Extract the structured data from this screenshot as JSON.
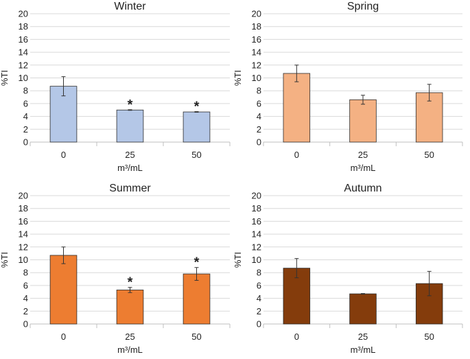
{
  "chart_data": [
    {
      "type": "bar",
      "title": "Winter",
      "categories": [
        "0",
        "25",
        "50"
      ],
      "values": [
        8.7,
        5.0,
        4.7
      ],
      "errors": [
        1.5,
        0.05,
        0.05
      ],
      "significant": [
        false,
        true,
        true
      ],
      "marker": "*",
      "xlabel": "m³/mL",
      "ylabel": "%TI",
      "ylim": [
        0,
        20
      ],
      "yticks": [
        0,
        2,
        4,
        6,
        8,
        10,
        12,
        14,
        16,
        18,
        20
      ],
      "grid": true,
      "color": "#b4c7e7"
    },
    {
      "type": "bar",
      "title": "Spring",
      "categories": [
        "0",
        "25",
        "50"
      ],
      "values": [
        10.7,
        6.6,
        7.7
      ],
      "errors": [
        1.3,
        0.7,
        1.3
      ],
      "significant": [
        false,
        false,
        false
      ],
      "marker": "*",
      "xlabel": "m³/mL",
      "ylabel": "%TI",
      "ylim": [
        0,
        20
      ],
      "yticks": [
        0,
        2,
        4,
        6,
        8,
        10,
        12,
        14,
        16,
        18,
        20
      ],
      "grid": true,
      "color": "#f4b183"
    },
    {
      "type": "bar",
      "title": "Summer",
      "categories": [
        "0",
        "25",
        "50"
      ],
      "values": [
        10.7,
        5.3,
        7.8
      ],
      "errors": [
        1.3,
        0.4,
        1.0
      ],
      "significant": [
        false,
        true,
        true
      ],
      "marker": "*",
      "xlabel": "m³/mL",
      "ylabel": "%TI",
      "ylim": [
        0,
        20
      ],
      "yticks": [
        0,
        2,
        4,
        6,
        8,
        10,
        12,
        14,
        16,
        18,
        20
      ],
      "grid": true,
      "color": "#ed7d31"
    },
    {
      "type": "bar",
      "title": "Autumn",
      "categories": [
        "0",
        "25",
        "50"
      ],
      "values": [
        8.7,
        4.7,
        6.3
      ],
      "errors": [
        1.5,
        0.05,
        1.9
      ],
      "significant": [
        false,
        false,
        false
      ],
      "marker": "*",
      "xlabel": "m³/mL",
      "ylabel": "%TI",
      "ylim": [
        0,
        20
      ],
      "yticks": [
        0,
        2,
        4,
        6,
        8,
        10,
        12,
        14,
        16,
        18,
        20
      ],
      "grid": true,
      "color": "#843c0c"
    }
  ]
}
